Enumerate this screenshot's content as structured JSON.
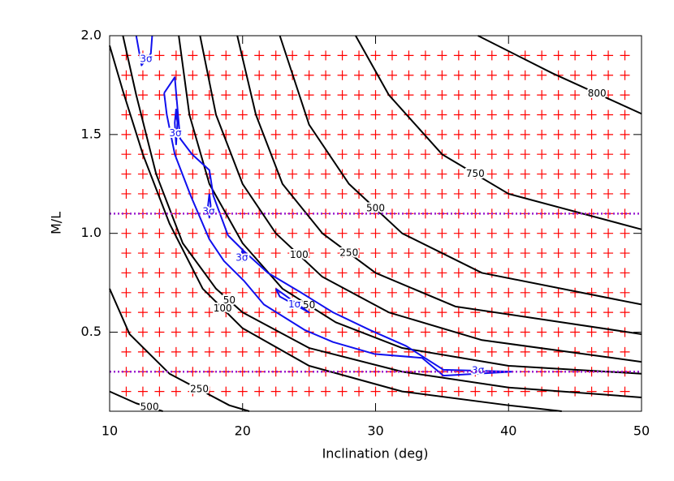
{
  "chart_data": {
    "type": "contour",
    "x_label": "Inclination (deg)",
    "y_label": "M/L",
    "xlim": [
      10,
      50
    ],
    "ylim": [
      0.1,
      2.0
    ],
    "xticks": [
      10,
      20,
      30,
      40,
      50
    ],
    "yticks": [
      0.5,
      {
        "value": 1.0,
        "label": "1.0"
      },
      1.5,
      {
        "value": 2.0,
        "label": "2.0"
      }
    ],
    "grid_points": {
      "color": "#ff0000",
      "x": [
        11.25,
        12.5,
        13.75,
        15,
        16.25,
        17.5,
        18.75,
        20,
        21.25,
        22.5,
        23.75,
        25,
        26.25,
        27.5,
        28.75,
        30,
        31.25,
        32.5,
        33.75,
        35,
        36.25,
        37.5,
        38.75,
        40,
        41.25,
        42.5,
        43.75,
        45,
        46.25,
        47.5,
        48.75
      ],
      "y": [
        0.2,
        0.3,
        0.4,
        0.5,
        0.6,
        0.7,
        0.8,
        0.9,
        1.0,
        1.1,
        1.2,
        1.3,
        1.4,
        1.5,
        1.6,
        1.7,
        1.8,
        1.9
      ]
    },
    "hlines": {
      "color": "#9a1fd0",
      "values": [
        1.1,
        0.3
      ]
    },
    "contours": [
      {
        "label": "50",
        "color": "#000000",
        "x": [
          11.0,
          12.0,
          13.5,
          15.5,
          18,
          20,
          25,
          32,
          40,
          50
        ],
        "y": [
          2.0,
          1.7,
          1.3,
          0.95,
          0.72,
          0.6,
          0.42,
          0.3,
          0.22,
          0.17
        ]
      },
      {
        "label": "100",
        "color": "#000000",
        "x": [
          10,
          11,
          12.5,
          14.5,
          17,
          20,
          25,
          32,
          40,
          44
        ],
        "y": [
          1.95,
          1.72,
          1.4,
          1.05,
          0.72,
          0.52,
          0.33,
          0.2,
          0.13,
          0.1
        ]
      },
      {
        "label": "250",
        "color": "#000000",
        "x": [
          10,
          11.5,
          14.5,
          19,
          20.5
        ],
        "y": [
          0.72,
          0.49,
          0.29,
          0.13,
          0.1
        ]
      },
      {
        "label": "500",
        "color": "#000000",
        "x": [
          10,
          12,
          14
        ],
        "y": [
          0.2,
          0.14,
          0.1
        ]
      },
      {
        "label": "50",
        "color": "#000000",
        "x": [
          15.2,
          16,
          17.5,
          20,
          23,
          27,
          32,
          40,
          50
        ],
        "y": [
          2.0,
          1.6,
          1.25,
          0.95,
          0.72,
          0.55,
          0.42,
          0.33,
          0.29
        ]
      },
      {
        "label": "100",
        "color": "#000000",
        "x": [
          16.8,
          18,
          20,
          22.5,
          26,
          31,
          38,
          50
        ],
        "y": [
          2.0,
          1.6,
          1.25,
          1.0,
          0.78,
          0.6,
          0.46,
          0.35
        ]
      },
      {
        "label": "250",
        "color": "#000000",
        "x": [
          19.6,
          21,
          23,
          26,
          30,
          36,
          50
        ],
        "y": [
          2.0,
          1.6,
          1.25,
          1.0,
          0.8,
          0.63,
          0.49
        ]
      },
      {
        "label": "500",
        "color": "#000000",
        "x": [
          22.8,
          25,
          28,
          32,
          38,
          50
        ],
        "y": [
          2.0,
          1.55,
          1.25,
          1.0,
          0.8,
          0.64
        ]
      },
      {
        "label": "750",
        "color": "#000000",
        "x": [
          28.5,
          31,
          35,
          40,
          50
        ],
        "y": [
          2.0,
          1.7,
          1.4,
          1.2,
          1.02
        ]
      },
      {
        "label": "800",
        "color": "#000000",
        "x": [
          37.7,
          43.3,
          50
        ],
        "y": [
          2.0,
          1.81,
          1.605
        ]
      },
      {
        "label": "3σ",
        "color": "#1010ee",
        "x": [
          14.1,
          14.9,
          15.3,
          16.2,
          17.5,
          17.8,
          18.9,
          20.1,
          21.9,
          24.4,
          26.8,
          29.6,
          32.3,
          35.1,
          40.3,
          35.1,
          33.5,
          29.9,
          26.8,
          24.7,
          21.6,
          20.1,
          18.6,
          17.5,
          16.1,
          14.9,
          14.3,
          14.1
        ],
        "y": [
          1.71,
          1.79,
          1.48,
          1.4,
          1.32,
          1.19,
          0.99,
          0.91,
          0.8,
          0.7,
          0.6,
          0.51,
          0.43,
          0.31,
          0.3,
          0.28,
          0.37,
          0.39,
          0.45,
          0.51,
          0.64,
          0.76,
          0.86,
          0.97,
          1.19,
          1.4,
          1.6,
          1.71
        ]
      },
      {
        "label": "3σ",
        "color": "#1010ee",
        "x": [
          12.0,
          12.4,
          13.1,
          13.2
        ],
        "y": [
          2.0,
          1.85,
          1.91,
          2.0
        ]
      },
      {
        "label": "3σ",
        "color": "#1010ee",
        "x": [
          15,
          15.1,
          15,
          14.9,
          15
        ],
        "y": [
          1.63,
          1.56,
          1.45,
          1.56,
          1.63
        ]
      },
      {
        "label": "3σ",
        "color": "#1010ee",
        "x": [
          17.5,
          17.6,
          17.5,
          17.4,
          17.5
        ],
        "y": [
          1.2,
          1.14,
          1.08,
          1.14,
          1.2
        ]
      },
      {
        "label": "3σ",
        "color": "#1010ee",
        "x": [
          20,
          20.1,
          20,
          19.9,
          20
        ],
        "y": [
          0.92,
          0.89,
          0.86,
          0.89,
          0.92
        ]
      },
      {
        "label": "1σ",
        "color": "#1010ee",
        "x": [
          22.5,
          25,
          22.8,
          22.5
        ],
        "y": [
          0.72,
          0.6,
          0.68,
          0.72
        ]
      }
    ]
  }
}
